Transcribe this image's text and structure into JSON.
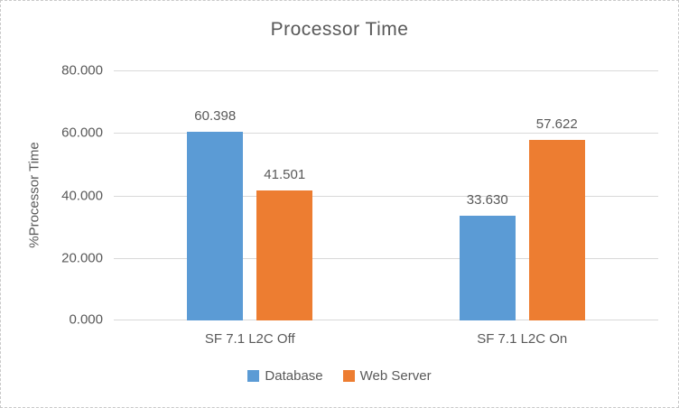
{
  "chart_data": {
    "type": "bar",
    "title": "Processor Time",
    "xlabel": "",
    "ylabel": "%Processor Time",
    "categories": [
      "SF 7.1 L2C Off",
      "SF 7.1 L2C On"
    ],
    "series": [
      {
        "name": "Database",
        "color": "#5B9BD5",
        "values": [
          60.398,
          33.63
        ],
        "labels": [
          "60.398",
          "33.630"
        ]
      },
      {
        "name": "Web Server",
        "color": "#ED7D31",
        "values": [
          41.501,
          57.622
        ],
        "labels": [
          "41.501",
          "57.622"
        ]
      }
    ],
    "ylim": [
      0,
      80
    ],
    "yticks": [
      {
        "value": 0,
        "label": "0.000"
      },
      {
        "value": 20,
        "label": "20.000"
      },
      {
        "value": 40,
        "label": "40.000"
      },
      {
        "value": 60,
        "label": "60.000"
      },
      {
        "value": 80,
        "label": "80.000"
      }
    ],
    "grid": true,
    "legend_position": "bottom",
    "colors": {
      "text": "#595959",
      "gridline": "#D9D9D9",
      "background": "#FFFFFF",
      "border": "#C9C9C9"
    }
  }
}
